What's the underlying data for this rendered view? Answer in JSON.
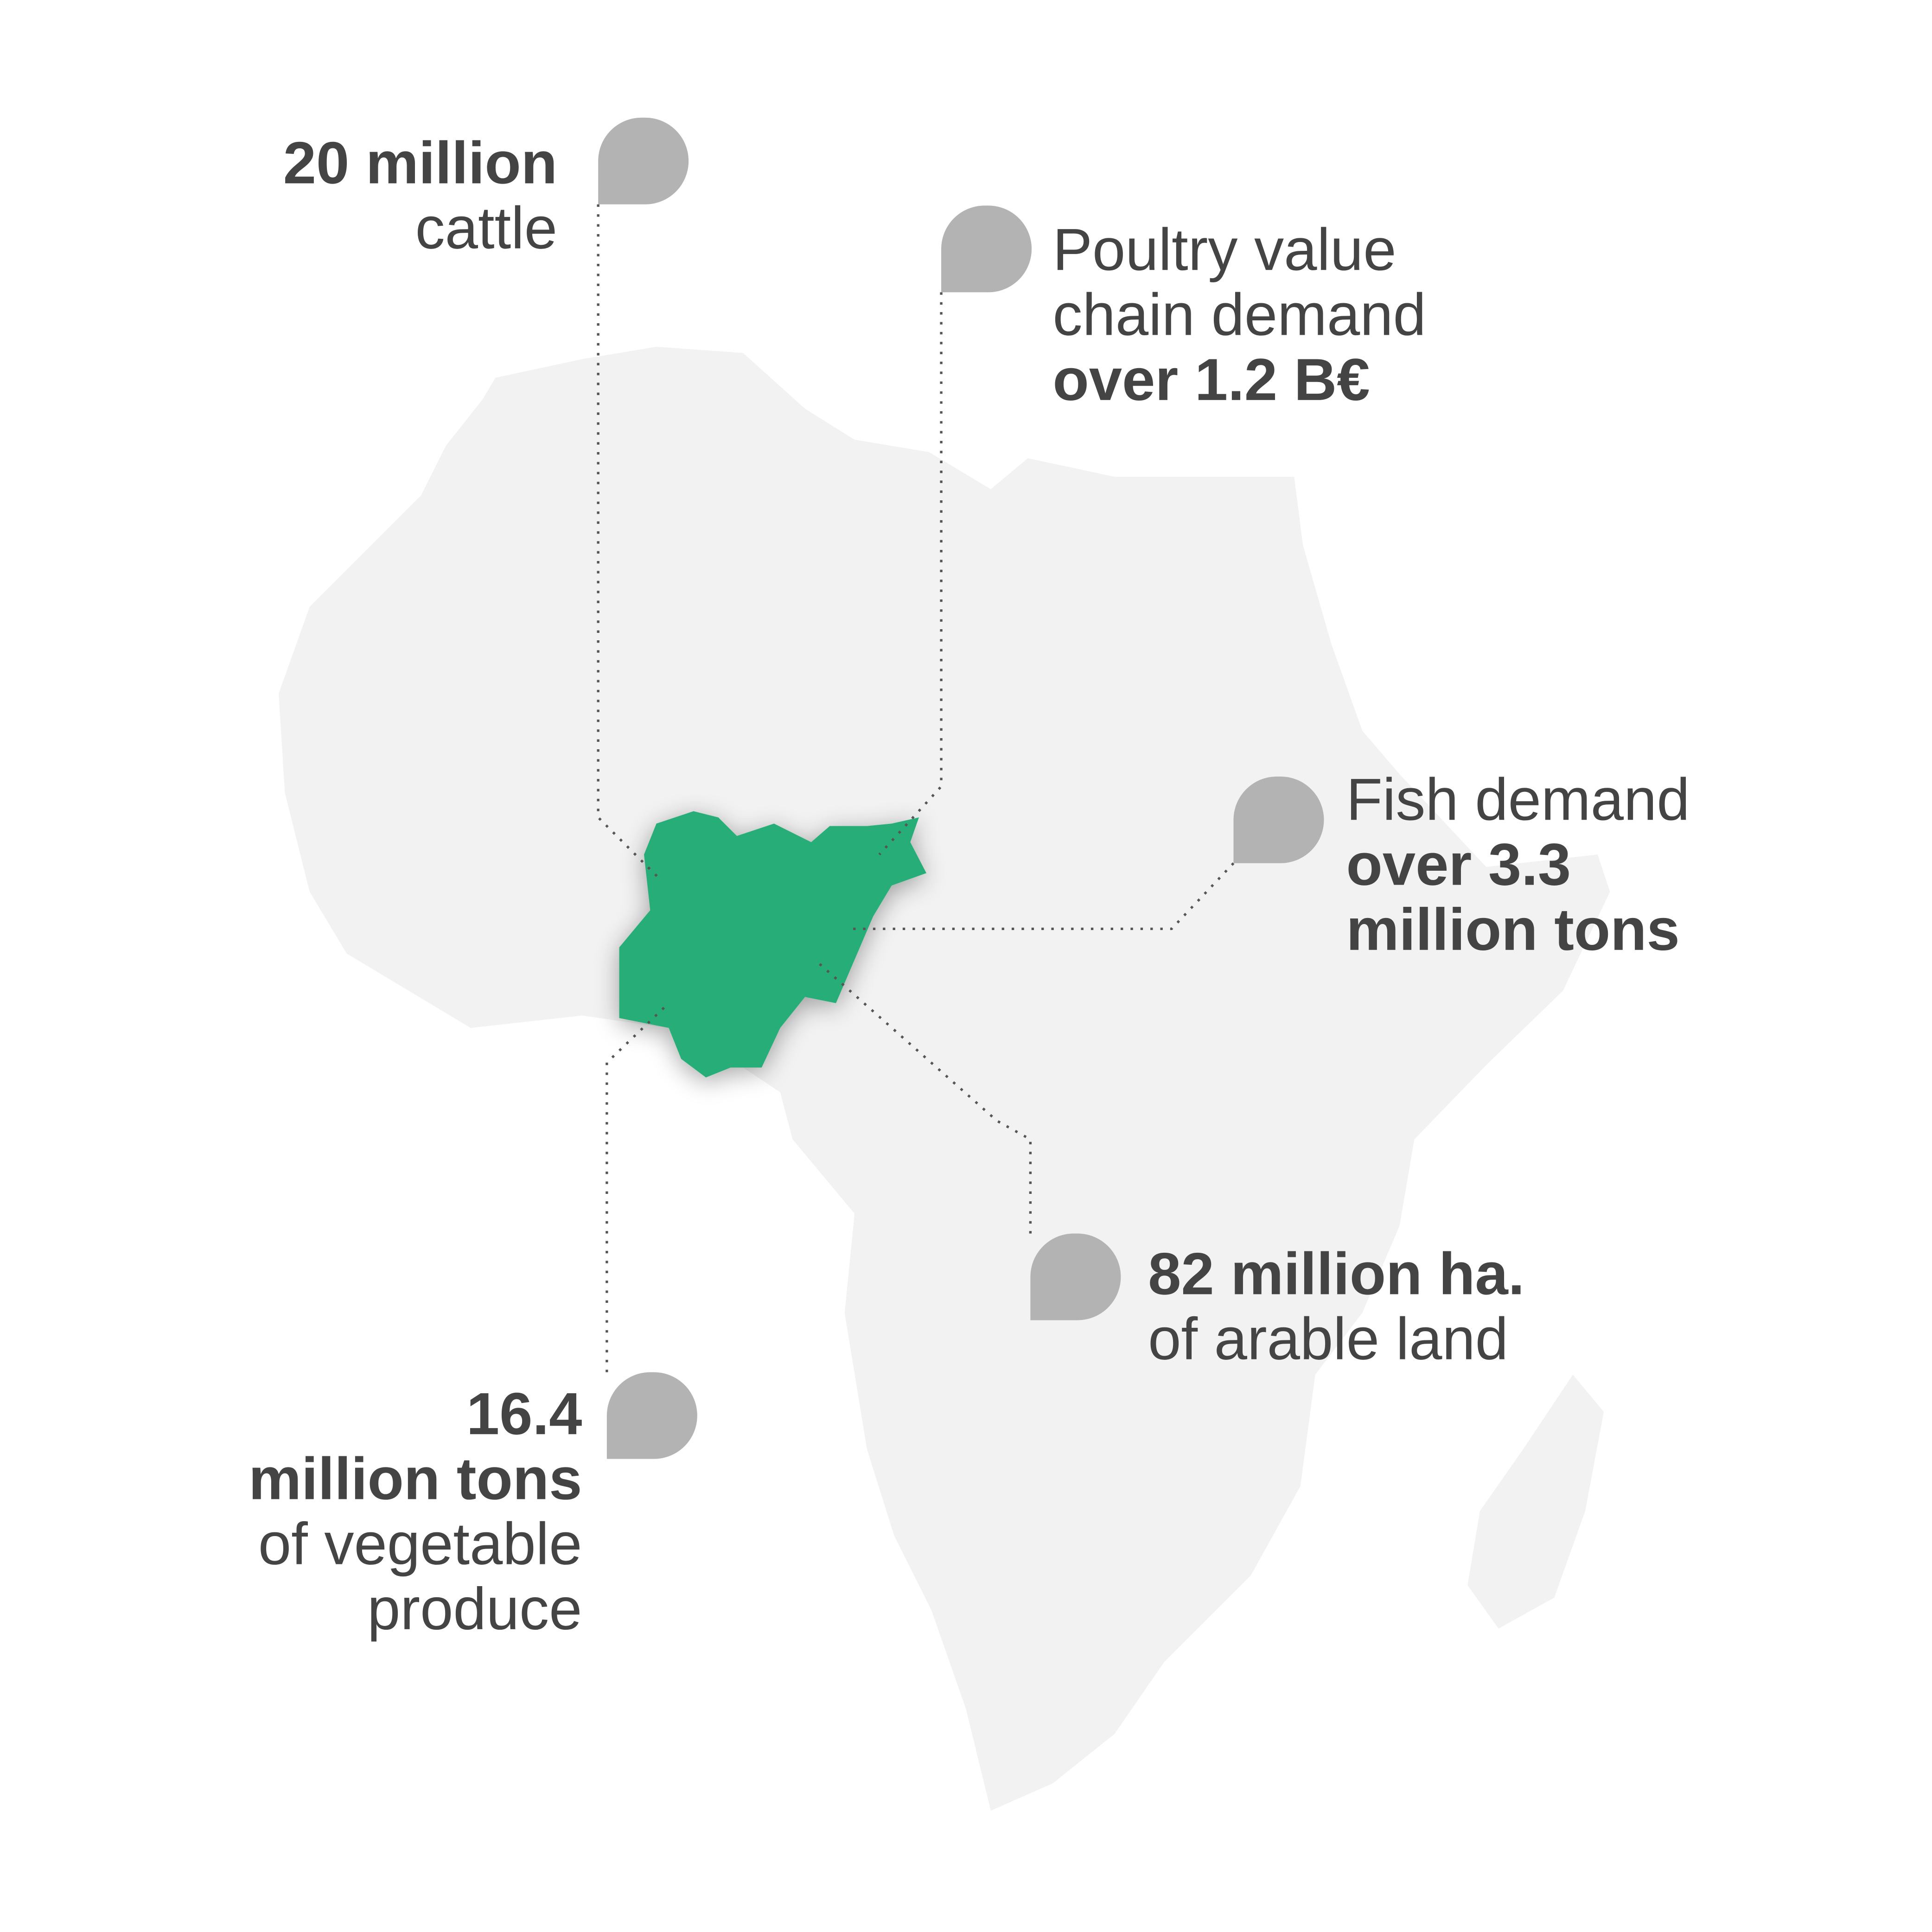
{
  "annotations": [
    {
      "lines": [
        {
          "text": "20 million",
          "bold": true
        },
        {
          "text": "cattle",
          "bold": false
        }
      ]
    },
    {
      "lines": [
        {
          "text": "Poultry value",
          "bold": false
        },
        {
          "text": "chain demand",
          "bold": false
        },
        {
          "text": "over 1.2 B€",
          "bold": true
        }
      ]
    },
    {
      "lines": [
        {
          "text": "Fish demand",
          "bold": false
        },
        {
          "text": "over 3.3",
          "bold": true
        },
        {
          "text": "million tons",
          "bold": true
        }
      ]
    },
    {
      "lines": [
        {
          "text": "82 million ha.",
          "bold": true
        },
        {
          "text": "of arable land",
          "bold": false
        }
      ]
    },
    {
      "lines": [
        {
          "text": "16.4",
          "bold": true
        },
        {
          "text": "million tons",
          "bold": true
        },
        {
          "text": "of vegetable",
          "bold": false
        },
        {
          "text": "produce",
          "bold": false
        }
      ]
    }
  ]
}
